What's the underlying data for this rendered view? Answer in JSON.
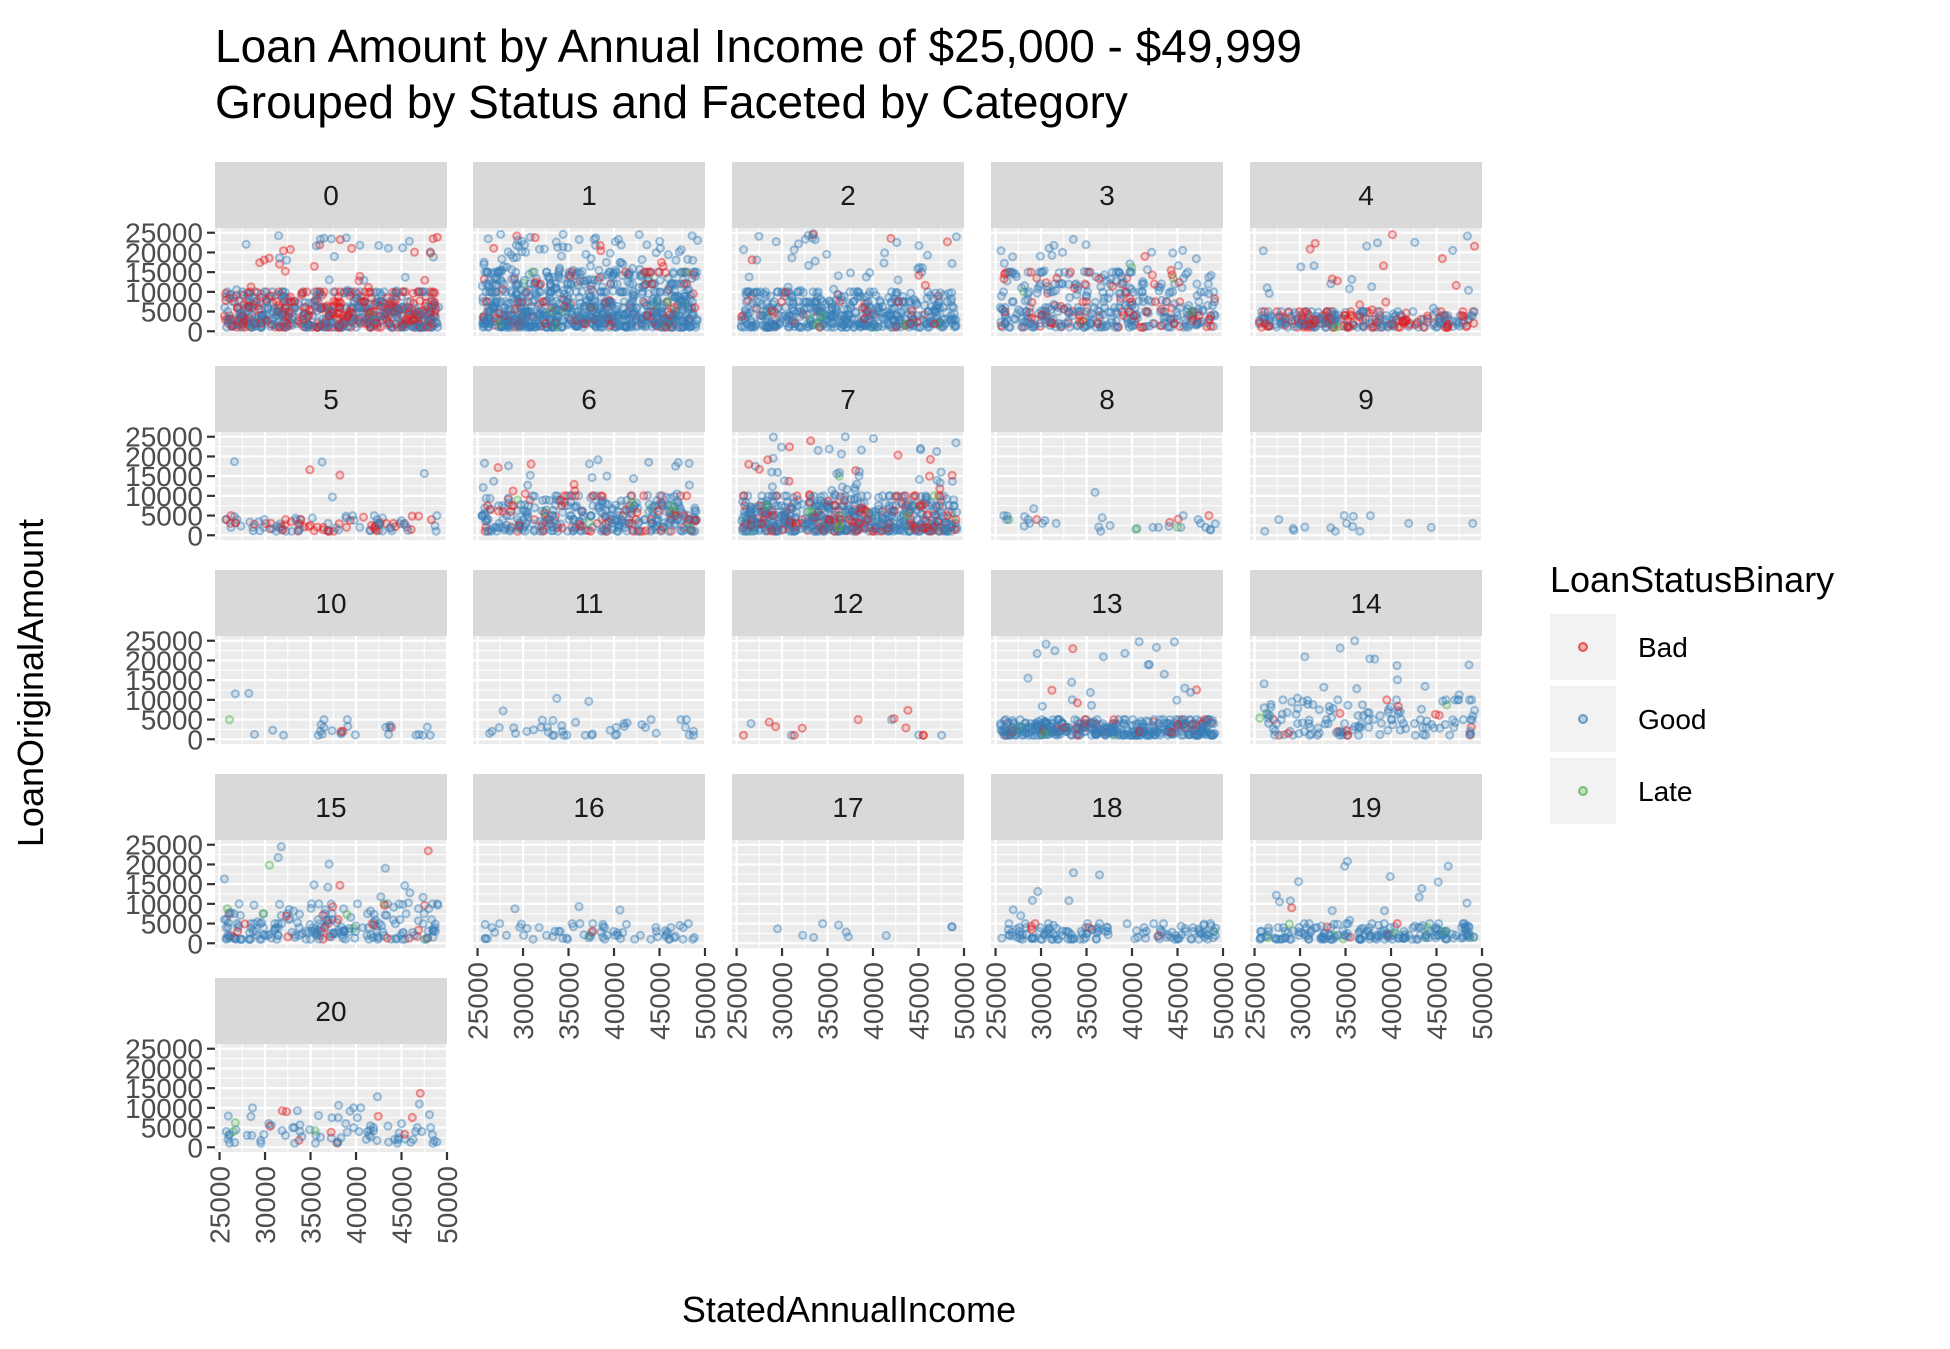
{
  "chart_data": {
    "type": "scatter",
    "title_lines": [
      "Loan Amount by Annual Income of $25,000 - $49,999",
      "Grouped by Status and Faceted by Category"
    ],
    "xlabel": "StatedAnnualIncome",
    "ylabel": "LoanOriginalAmount",
    "x_range": [
      24500,
      50000
    ],
    "y_range": [
      -1200,
      26200
    ],
    "x_ticks": [
      25000,
      30000,
      35000,
      40000,
      45000,
      50000
    ],
    "y_ticks": [
      0,
      5000,
      10000,
      15000,
      20000,
      25000
    ],
    "grid": true,
    "facet_variable": "category",
    "facets": [
      "0",
      "1",
      "2",
      "3",
      "4",
      "5",
      "6",
      "7",
      "8",
      "9",
      "10",
      "11",
      "12",
      "13",
      "14",
      "15",
      "16",
      "17",
      "18",
      "19",
      "20"
    ],
    "legend": {
      "title": "LoanStatusBinary",
      "placement": "right",
      "entries": [
        {
          "label": "Bad",
          "color": "#e41a1c"
        },
        {
          "label": "Good",
          "color": "#377eb8"
        },
        {
          "label": "Late",
          "color": "#4daf4a"
        }
      ]
    },
    "density_estimates": [
      {
        "facet": "0",
        "points": 700,
        "ymax": 25000,
        "dense_max": 10000,
        "bad_share": 0.45,
        "late_share": 0.01
      },
      {
        "facet": "1",
        "points": 900,
        "ymax": 25000,
        "dense_max": 15000,
        "bad_share": 0.1,
        "late_share": 0.02
      },
      {
        "facet": "2",
        "points": 520,
        "ymax": 25000,
        "dense_max": 10000,
        "bad_share": 0.08,
        "late_share": 0.02
      },
      {
        "facet": "3",
        "points": 420,
        "ymax": 25000,
        "dense_max": 15000,
        "bad_share": 0.22,
        "late_share": 0.01
      },
      {
        "facet": "4",
        "points": 300,
        "ymax": 25000,
        "dense_max": 5000,
        "bad_share": 0.4,
        "late_share": 0.01
      },
      {
        "facet": "5",
        "points": 110,
        "ymax": 20000,
        "dense_max": 5000,
        "bad_share": 0.35,
        "late_share": 0.01
      },
      {
        "facet": "6",
        "points": 380,
        "ymax": 20000,
        "dense_max": 10000,
        "bad_share": 0.22,
        "late_share": 0.03
      },
      {
        "facet": "7",
        "points": 650,
        "ymax": 25000,
        "dense_max": 10000,
        "bad_share": 0.25,
        "late_share": 0.03
      },
      {
        "facet": "8",
        "points": 35,
        "ymax": 15000,
        "dense_max": 5000,
        "bad_share": 0.1,
        "late_share": 0.05
      },
      {
        "facet": "9",
        "points": 16,
        "ymax": 15000,
        "dense_max": 5000,
        "bad_share": 0.0,
        "late_share": 0.0
      },
      {
        "facet": "10",
        "points": 30,
        "ymax": 15000,
        "dense_max": 5000,
        "bad_share": 0.15,
        "late_share": 0.03
      },
      {
        "facet": "11",
        "points": 42,
        "ymax": 13000,
        "dense_max": 5000,
        "bad_share": 0.02,
        "late_share": 0.02
      },
      {
        "facet": "12",
        "points": 16,
        "ymax": 9000,
        "dense_max": 5000,
        "bad_share": 0.55,
        "late_share": 0.0
      },
      {
        "facet": "13",
        "points": 420,
        "ymax": 25000,
        "dense_max": 5000,
        "bad_share": 0.1,
        "late_share": 0.03
      },
      {
        "facet": "14",
        "points": 150,
        "ymax": 25000,
        "dense_max": 10000,
        "bad_share": 0.05,
        "late_share": 0.03
      },
      {
        "facet": "15",
        "points": 230,
        "ymax": 25000,
        "dense_max": 10000,
        "bad_share": 0.08,
        "late_share": 0.04
      },
      {
        "facet": "16",
        "points": 70,
        "ymax": 10000,
        "dense_max": 5000,
        "bad_share": 0.02,
        "late_share": 0.02
      },
      {
        "facet": "17",
        "points": 10,
        "ymax": 20000,
        "dense_max": 5000,
        "bad_share": 0.0,
        "late_share": 0.0
      },
      {
        "facet": "18",
        "points": 140,
        "ymax": 20000,
        "dense_max": 5000,
        "bad_share": 0.03,
        "late_share": 0.04
      },
      {
        "facet": "19",
        "points": 200,
        "ymax": 22000,
        "dense_max": 5000,
        "bad_share": 0.03,
        "late_share": 0.03
      },
      {
        "facet": "20",
        "points": 90,
        "ymax": 15000,
        "dense_max": 10000,
        "bad_share": 0.1,
        "late_share": 0.04
      }
    ]
  }
}
